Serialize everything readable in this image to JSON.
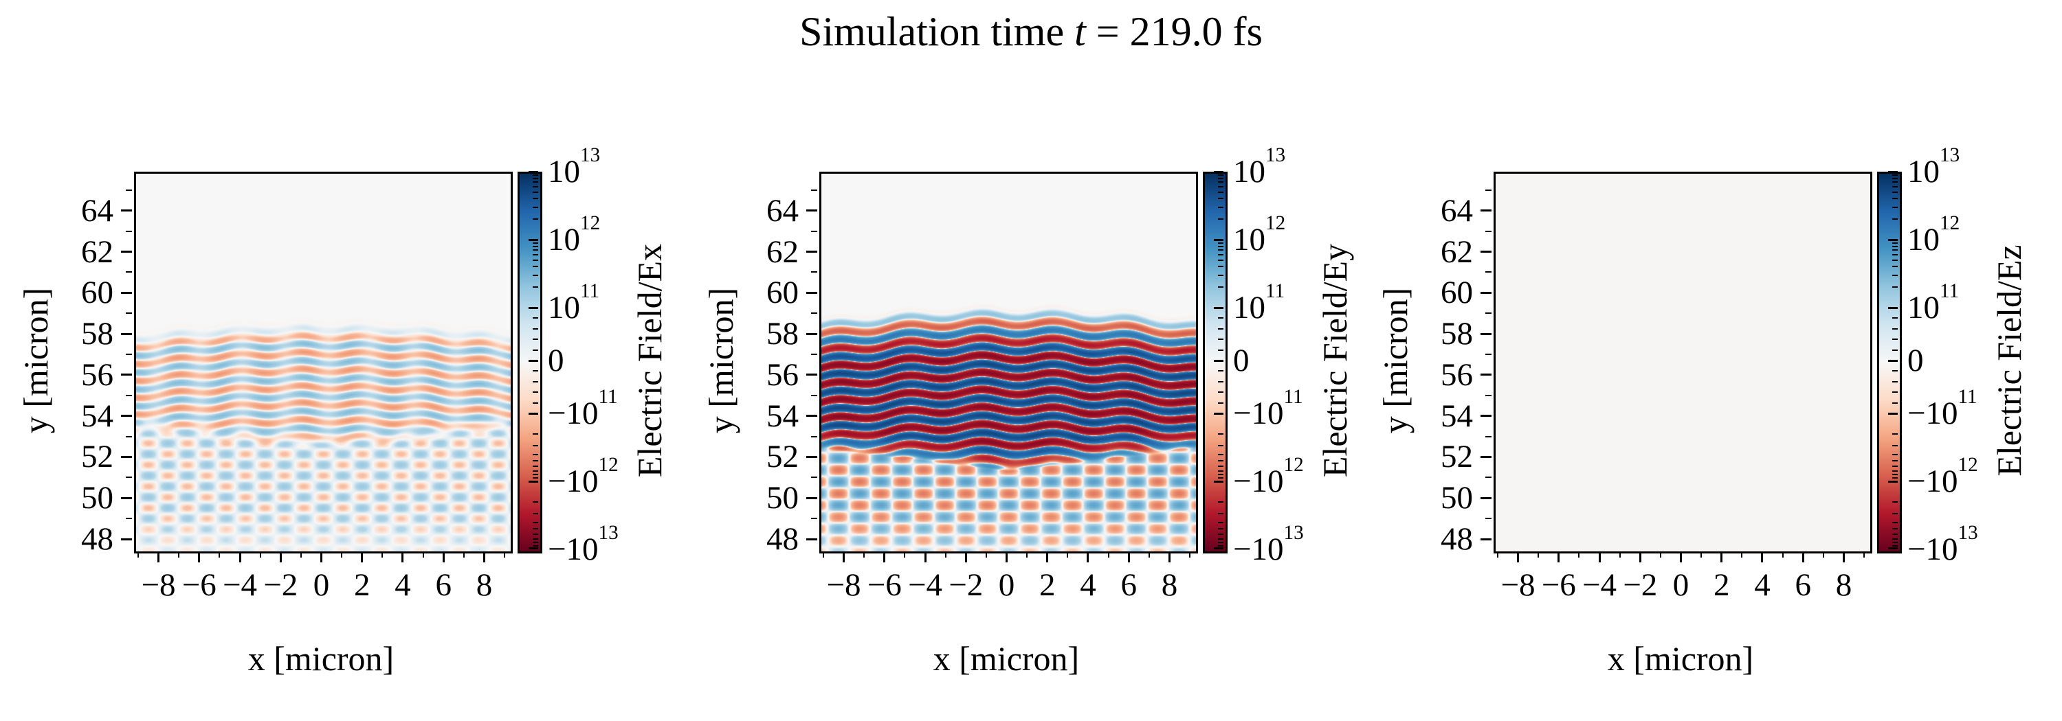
{
  "figure": {
    "title": {
      "prefix": "Simulation time ",
      "var": "t",
      "rest": " = 219.0 fs"
    }
  },
  "colors": {
    "background": "#ffffff",
    "spine": "#000000",
    "zero_field": "#f6f5f4",
    "colormap": "RdBu",
    "colormap_stops": [
      "#67001f",
      "#b2182b",
      "#d6604d",
      "#f4a582",
      "#fddbc7",
      "#f7f7f7",
      "#d1e5f0",
      "#92c5de",
      "#4393c3",
      "#2166ac",
      "#053061"
    ]
  },
  "chart_data": [
    {
      "type": "heatmap",
      "panel": "Ex",
      "xlabel": "x [micron]",
      "ylabel": "y [micron]",
      "colorbar_label": "Electric Field/Ex",
      "xlim": [
        -9.2,
        9.2
      ],
      "ylim": [
        47.5,
        65.9
      ],
      "xticks": [
        -8,
        -6,
        -4,
        -2,
        0,
        2,
        4,
        6,
        8
      ],
      "yticks": [
        48,
        50,
        52,
        54,
        56,
        58,
        60,
        62,
        64
      ],
      "minor_tick_step": 1,
      "colorbar": {
        "scale": "symlog",
        "vmin": -10000000000000.0,
        "vmax": 10000000000000.0,
        "linthresh": 100000000000.0,
        "decade_frac": 0.18,
        "linear_frac": 0.14,
        "major_ticks": [
          {
            "v": 10000000000000.0,
            "sign": "",
            "mant": "10",
            "exp": "13"
          },
          {
            "v": 1000000000000.0,
            "sign": "",
            "mant": "10",
            "exp": "12"
          },
          {
            "v": 100000000000.0,
            "sign": "",
            "mant": "10",
            "exp": "11"
          },
          {
            "v": 0,
            "sign": "",
            "mant": "0",
            "exp": ""
          },
          {
            "v": -100000000000.0,
            "sign": "−",
            "mant": "10",
            "exp": "11"
          },
          {
            "v": -1000000000000.0,
            "sign": "−",
            "mant": "10",
            "exp": "12"
          },
          {
            "v": -10000000000000.0,
            "sign": "−",
            "mant": "10",
            "exp": "13"
          }
        ]
      },
      "field": {
        "model": "laser-wakefield-stripes",
        "zero": false,
        "description": "moderate-amplitude horizontal laser stripes below y~58.9, broken into blob columns, with V-shaped crossing wake below y~52 fading toward the bottom edge",
        "front_y": 58.9,
        "ramp": 1.1,
        "wavelength": 0.82,
        "phase0": 0,
        "amplitude": 2.6,
        "curvature": 0.45,
        "wobble_amp": 0.09,
        "wobble_period": 3.0,
        "mod_depth": 0.55,
        "mod_period": 2.1,
        "wake": {
          "amplitude": 1.5,
          "slope": 0.55,
          "wavelength": 1.05,
          "top0": 52.3,
          "top_slope": 0.1,
          "blend": 1.0,
          "fade": 3.0,
          "bias": 0.25
        }
      }
    },
    {
      "type": "heatmap",
      "panel": "Ey",
      "xlabel": "x [micron]",
      "ylabel": "y [micron]",
      "colorbar_label": "Electric Field/Ey",
      "xlim": [
        -9.2,
        9.2
      ],
      "ylim": [
        47.5,
        65.9
      ],
      "xticks": [
        -8,
        -6,
        -4,
        -2,
        0,
        2,
        4,
        6,
        8
      ],
      "yticks": [
        48,
        50,
        52,
        54,
        56,
        58,
        60,
        62,
        64
      ],
      "minor_tick_step": 1,
      "colorbar": {
        "scale": "symlog",
        "vmin": -10000000000000.0,
        "vmax": 10000000000000.0,
        "linthresh": 100000000000.0,
        "decade_frac": 0.18,
        "linear_frac": 0.14,
        "major_ticks": [
          {
            "v": 10000000000000.0,
            "sign": "",
            "mant": "10",
            "exp": "13"
          },
          {
            "v": 1000000000000.0,
            "sign": "",
            "mant": "10",
            "exp": "12"
          },
          {
            "v": 100000000000.0,
            "sign": "",
            "mant": "10",
            "exp": "11"
          },
          {
            "v": 0,
            "sign": "",
            "mant": "0",
            "exp": ""
          },
          {
            "v": -100000000000.0,
            "sign": "−",
            "mant": "10",
            "exp": "11"
          },
          {
            "v": -1000000000000.0,
            "sign": "−",
            "mant": "10",
            "exp": "12"
          },
          {
            "v": -10000000000000.0,
            "sign": "−",
            "mant": "10",
            "exp": "13"
          }
        ]
      },
      "field": {
        "model": "laser-wakefield-stripes",
        "zero": false,
        "description": "strongly saturated dark red/blue horizontal stripes below y~59.5 with slight dome curvature, diagonal criss-cross wake fan below y~51.4",
        "front_y": 59.5,
        "ramp": 2.4,
        "wavelength": 0.84,
        "phase0": 3.1416,
        "amplitude": 55,
        "curvature": 0.55,
        "wobble_amp": 0.13,
        "wobble_period": 3.6,
        "mod_depth": 0.15,
        "mod_period": 2.4,
        "wake": {
          "amplitude": 5,
          "slope": 0.55,
          "wavelength": 1.15,
          "top0": 51.4,
          "top_slope": 0.12,
          "blend": 1.2,
          "fade": 3.5,
          "bias": 0.3
        }
      }
    },
    {
      "type": "heatmap",
      "panel": "Ez",
      "xlabel": "x [micron]",
      "ylabel": "y [micron]",
      "colorbar_label": "Electric Field/Ez",
      "xlim": [
        -9.2,
        9.2
      ],
      "ylim": [
        47.5,
        65.9
      ],
      "xticks": [
        -8,
        -6,
        -4,
        -2,
        0,
        2,
        4,
        6,
        8
      ],
      "yticks": [
        48,
        50,
        52,
        54,
        56,
        58,
        60,
        62,
        64
      ],
      "minor_tick_step": 1,
      "colorbar": {
        "scale": "symlog",
        "vmin": -10000000000000.0,
        "vmax": 10000000000000.0,
        "linthresh": 100000000000.0,
        "decade_frac": 0.18,
        "linear_frac": 0.14,
        "major_ticks": [
          {
            "v": 10000000000000.0,
            "sign": "",
            "mant": "10",
            "exp": "13"
          },
          {
            "v": 1000000000000.0,
            "sign": "",
            "mant": "10",
            "exp": "12"
          },
          {
            "v": 100000000000.0,
            "sign": "",
            "mant": "10",
            "exp": "11"
          },
          {
            "v": 0,
            "sign": "",
            "mant": "0",
            "exp": ""
          },
          {
            "v": -100000000000.0,
            "sign": "−",
            "mant": "10",
            "exp": "11"
          },
          {
            "v": -1000000000000.0,
            "sign": "−",
            "mant": "10",
            "exp": "12"
          },
          {
            "v": -10000000000000.0,
            "sign": "−",
            "mant": "10",
            "exp": "13"
          }
        ]
      },
      "field": {
        "model": "zero",
        "zero": true,
        "description": "field is zero everywhere; uniform near-white panel"
      }
    }
  ]
}
